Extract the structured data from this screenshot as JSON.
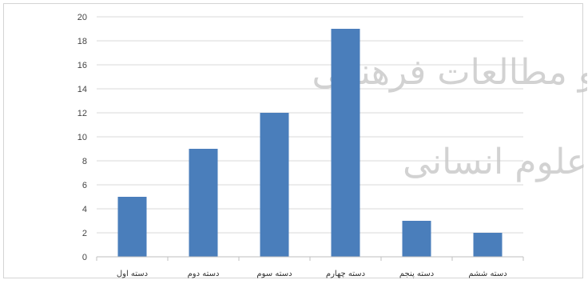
{
  "chart_data": {
    "type": "bar",
    "categories": [
      "دسته اول",
      "دسته دوم",
      "دسته سوم",
      "دسته چهارم",
      "دسته پنجم",
      "دسته ششم"
    ],
    "values": [
      5,
      9,
      12,
      19,
      3,
      2
    ],
    "ylim": [
      0,
      20
    ],
    "yticks": [
      0,
      2,
      4,
      6,
      8,
      10,
      12,
      14,
      16,
      18,
      20
    ],
    "grid": true,
    "bar_color": "#4a7ebb",
    "grid_color": "#d9d9d9",
    "axis_color": "#bfbfbf"
  },
  "watermark": {
    "line1": "و مطالعات فرهنگی",
    "line2": "علوم انسانی",
    "color": "#c8c8c8"
  }
}
